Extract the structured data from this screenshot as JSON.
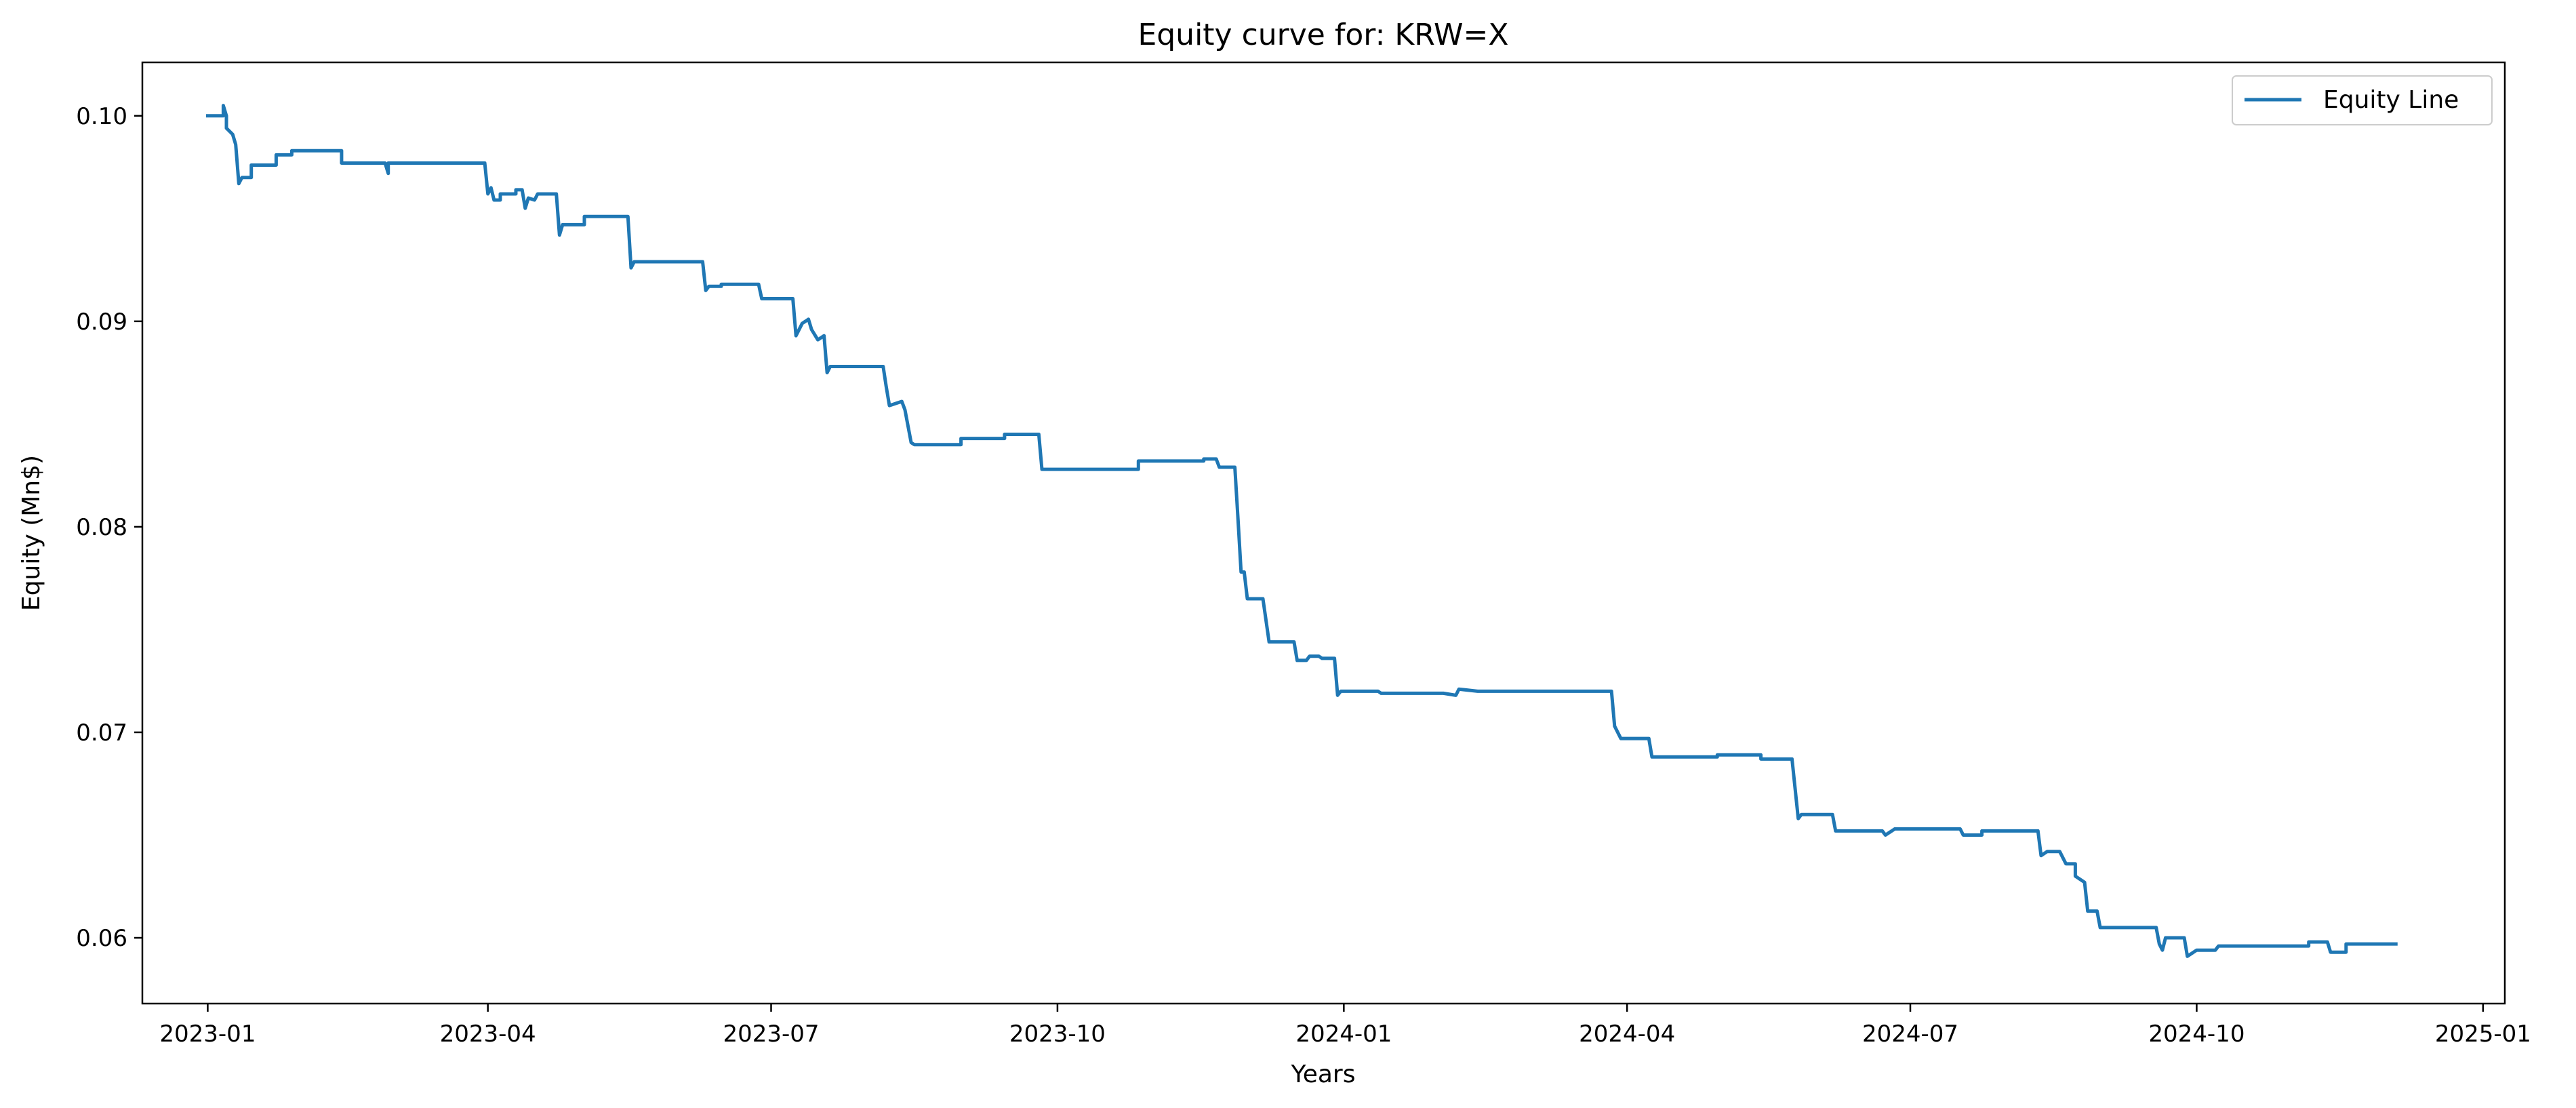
{
  "chart_data": {
    "type": "line",
    "title": "Equity curve for: KRW=X",
    "xlabel": "Years",
    "ylabel": "Equity (Mn$)",
    "x_ticks": [
      "2023-01",
      "2023-04",
      "2023-07",
      "2023-10",
      "2024-01",
      "2024-04",
      "2024-07",
      "2024-10",
      "2025-01"
    ],
    "y_ticks": [
      "0.06",
      "0.07",
      "0.08",
      "0.09",
      "0.10"
    ],
    "xlim": [
      "2022-12-11",
      "2025-01-08"
    ],
    "ylim": [
      0.0568,
      0.1026
    ],
    "grid": false,
    "legend_position": "top-right",
    "colors": {
      "line": "#1f77b4"
    },
    "series": [
      {
        "name": "Equity Line",
        "points": [
          [
            "2023-01-01",
            0.1
          ],
          [
            "2023-01-06",
            0.1
          ],
          [
            "2023-01-06",
            0.1005
          ],
          [
            "2023-01-07",
            0.1
          ],
          [
            "2023-01-07",
            0.0994
          ],
          [
            "2023-01-09",
            0.0991
          ],
          [
            "2023-01-10",
            0.0986
          ],
          [
            "2023-01-11",
            0.0967
          ],
          [
            "2023-01-12",
            0.097
          ],
          [
            "2023-01-15",
            0.097
          ],
          [
            "2023-01-15",
            0.0976
          ],
          [
            "2023-01-23",
            0.0976
          ],
          [
            "2023-01-23",
            0.0981
          ],
          [
            "2023-01-28",
            0.0981
          ],
          [
            "2023-01-28",
            0.0983
          ],
          [
            "2023-02-13",
            0.0983
          ],
          [
            "2023-02-13",
            0.0977
          ],
          [
            "2023-02-27",
            0.0977
          ],
          [
            "2023-02-28",
            0.0972
          ],
          [
            "2023-02-28",
            0.0977
          ],
          [
            "2023-03-31",
            0.0977
          ],
          [
            "2023-04-01",
            0.0962
          ],
          [
            "2023-04-02",
            0.0965
          ],
          [
            "2023-04-03",
            0.0959
          ],
          [
            "2023-04-05",
            0.0959
          ],
          [
            "2023-04-05",
            0.0962
          ],
          [
            "2023-04-10",
            0.0962
          ],
          [
            "2023-04-10",
            0.0964
          ],
          [
            "2023-04-12",
            0.0964
          ],
          [
            "2023-04-13",
            0.0955
          ],
          [
            "2023-04-14",
            0.096
          ],
          [
            "2023-04-16",
            0.0959
          ],
          [
            "2023-04-17",
            0.0962
          ],
          [
            "2023-04-23",
            0.0962
          ],
          [
            "2023-04-24",
            0.0942
          ],
          [
            "2023-04-25",
            0.0947
          ],
          [
            "2023-05-02",
            0.0947
          ],
          [
            "2023-05-02",
            0.0951
          ],
          [
            "2023-05-16",
            0.0951
          ],
          [
            "2023-05-17",
            0.0926
          ],
          [
            "2023-05-18",
            0.0929
          ],
          [
            "2023-06-09",
            0.0929
          ],
          [
            "2023-06-10",
            0.0915
          ],
          [
            "2023-06-11",
            0.0917
          ],
          [
            "2023-06-15",
            0.0917
          ],
          [
            "2023-06-15",
            0.0918
          ],
          [
            "2023-06-27",
            0.0918
          ],
          [
            "2023-06-28",
            0.0911
          ],
          [
            "2023-07-08",
            0.0911
          ],
          [
            "2023-07-09",
            0.0893
          ],
          [
            "2023-07-11",
            0.0899
          ],
          [
            "2023-07-13",
            0.0901
          ],
          [
            "2023-07-14",
            0.0896
          ],
          [
            "2023-07-16",
            0.0891
          ],
          [
            "2023-07-18",
            0.0893
          ],
          [
            "2023-07-19",
            0.0875
          ],
          [
            "2023-07-20",
            0.0878
          ],
          [
            "2023-08-06",
            0.0878
          ],
          [
            "2023-08-07",
            0.0868
          ],
          [
            "2023-08-08",
            0.0859
          ],
          [
            "2023-08-12",
            0.0861
          ],
          [
            "2023-08-13",
            0.0857
          ],
          [
            "2023-08-15",
            0.0841
          ],
          [
            "2023-08-16",
            0.084
          ],
          [
            "2023-08-31",
            0.084
          ],
          [
            "2023-08-31",
            0.0843
          ],
          [
            "2023-09-14",
            0.0843
          ],
          [
            "2023-09-14",
            0.0845
          ],
          [
            "2023-09-25",
            0.0845
          ],
          [
            "2023-09-26",
            0.0828
          ],
          [
            "2023-10-27",
            0.0828
          ],
          [
            "2023-10-27",
            0.0832
          ],
          [
            "2023-11-17",
            0.0832
          ],
          [
            "2023-11-17",
            0.0833
          ],
          [
            "2023-11-21",
            0.0833
          ],
          [
            "2023-11-22",
            0.0829
          ],
          [
            "2023-11-27",
            0.0829
          ],
          [
            "2023-11-28",
            0.0804
          ],
          [
            "2023-11-29",
            0.0778
          ],
          [
            "2023-11-30",
            0.0778
          ],
          [
            "2023-12-01",
            0.0765
          ],
          [
            "2023-12-06",
            0.0765
          ],
          [
            "2023-12-08",
            0.0744
          ],
          [
            "2023-12-16",
            0.0744
          ],
          [
            "2023-12-17",
            0.0735
          ],
          [
            "2023-12-20",
            0.0735
          ],
          [
            "2023-12-21",
            0.0737
          ],
          [
            "2023-12-24",
            0.0737
          ],
          [
            "2023-12-25",
            0.0736
          ],
          [
            "2023-12-29",
            0.0736
          ],
          [
            "2023-12-30",
            0.0718
          ],
          [
            "2023-12-31",
            0.072
          ],
          [
            "2024-01-12",
            0.072
          ],
          [
            "2024-01-13",
            0.0719
          ],
          [
            "2024-02-02",
            0.0719
          ],
          [
            "2024-02-06",
            0.0718
          ],
          [
            "2024-02-07",
            0.0721
          ],
          [
            "2024-02-13",
            0.072
          ],
          [
            "2024-03-27",
            0.072
          ],
          [
            "2024-03-28",
            0.0703
          ],
          [
            "2024-03-30",
            0.0697
          ],
          [
            "2024-04-08",
            0.0697
          ],
          [
            "2024-04-09",
            0.0688
          ],
          [
            "2024-04-30",
            0.0688
          ],
          [
            "2024-04-30",
            0.0689
          ],
          [
            "2024-05-14",
            0.0689
          ],
          [
            "2024-05-14",
            0.0687
          ],
          [
            "2024-05-24",
            0.0687
          ],
          [
            "2024-05-26",
            0.0658
          ],
          [
            "2024-05-27",
            0.066
          ],
          [
            "2024-06-06",
            0.066
          ],
          [
            "2024-06-07",
            0.0652
          ],
          [
            "2024-06-22",
            0.0652
          ],
          [
            "2024-06-23",
            0.065
          ],
          [
            "2024-06-26",
            0.0653
          ],
          [
            "2024-07-17",
            0.0653
          ],
          [
            "2024-07-18",
            0.065
          ],
          [
            "2024-07-24",
            0.065
          ],
          [
            "2024-07-24",
            0.0652
          ],
          [
            "2024-08-11",
            0.0652
          ],
          [
            "2024-08-12",
            0.064
          ],
          [
            "2024-08-14",
            0.0642
          ],
          [
            "2024-08-18",
            0.0642
          ],
          [
            "2024-08-20",
            0.0636
          ],
          [
            "2024-08-23",
            0.0636
          ],
          [
            "2024-08-23",
            0.063
          ],
          [
            "2024-08-26",
            0.0627
          ],
          [
            "2024-08-27",
            0.0613
          ],
          [
            "2024-08-30",
            0.0613
          ],
          [
            "2024-08-31",
            0.0605
          ],
          [
            "2024-09-18",
            0.0605
          ],
          [
            "2024-09-19",
            0.0597
          ],
          [
            "2024-09-20",
            0.0594
          ],
          [
            "2024-09-21",
            0.06
          ],
          [
            "2024-09-27",
            0.06
          ],
          [
            "2024-09-28",
            0.0591
          ],
          [
            "2024-10-01",
            0.0594
          ],
          [
            "2024-10-07",
            0.0594
          ],
          [
            "2024-10-08",
            0.0596
          ],
          [
            "2024-11-06",
            0.0596
          ],
          [
            "2024-11-06",
            0.0598
          ],
          [
            "2024-11-12",
            0.0598
          ],
          [
            "2024-11-13",
            0.0593
          ],
          [
            "2024-11-18",
            0.0593
          ],
          [
            "2024-11-18",
            0.0597
          ],
          [
            "2024-12-04",
            0.0597
          ]
        ]
      }
    ]
  }
}
